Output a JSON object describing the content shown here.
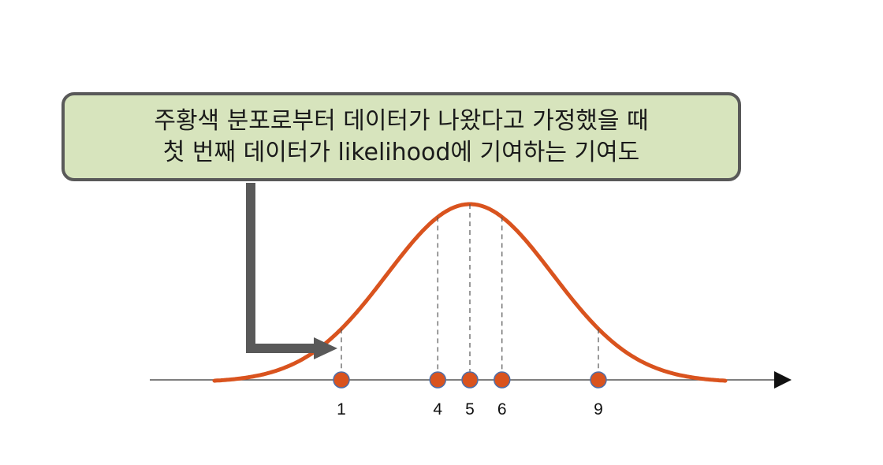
{
  "callout": {
    "line1": "주황색 분포로부터 데이터가 나왔다고 가정했을 때",
    "line2": "첫 번째 데이터가 likelihood에 기여하는 기여도"
  },
  "chart_data": {
    "type": "scatter",
    "points": [
      {
        "x": 1,
        "label": "1"
      },
      {
        "x": 4,
        "label": "4"
      },
      {
        "x": 5,
        "label": "5"
      },
      {
        "x": 6,
        "label": "6"
      },
      {
        "x": 9,
        "label": "9"
      }
    ],
    "highlighted_point": 1,
    "curve": "normal-distribution",
    "curve_mean": 5,
    "xlabel": "",
    "ylabel": ""
  },
  "colors": {
    "curve": "#d9531e",
    "point_fill": "#d9531e",
    "point_stroke": "#4f6ea8",
    "axis": "#555555",
    "arrow": "#595959",
    "callout_fill": "#d7e4bd",
    "callout_border": "#595959",
    "guide": "#555555"
  }
}
